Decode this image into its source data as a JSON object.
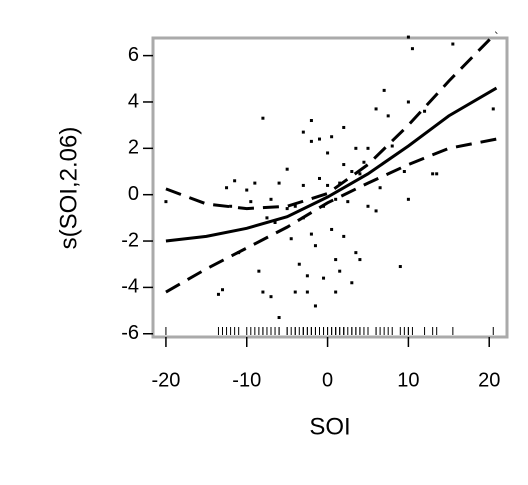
{
  "chart_data": {
    "type": "line",
    "xlabel": "SOI",
    "ylabel": "s(SOI,2.06)",
    "xlim": [
      -21.6,
      22.2
    ],
    "ylim": [
      -6.14,
      6.76
    ],
    "xticks": [
      -20,
      -10,
      0,
      10,
      20
    ],
    "yticks": [
      -6,
      -4,
      -2,
      0,
      2,
      4,
      6
    ],
    "x": [
      -20,
      -15,
      -10,
      -5,
      0,
      5,
      10,
      15,
      20.9
    ],
    "lines": [
      {
        "color": "#000000",
        "dashed": false,
        "values": [
          -2.0,
          -1.8,
          -1.45,
          -0.95,
          -0.1,
          0.9,
          2.1,
          3.4,
          4.6
        ]
      },
      {
        "color": "#000000",
        "dashed": true,
        "values": [
          0.25,
          -0.4,
          -0.6,
          -0.5,
          0.05,
          1.3,
          3.0,
          4.9,
          7.0
        ]
      },
      {
        "color": "#000000",
        "dashed": true,
        "values": [
          -4.2,
          -3.2,
          -2.3,
          -1.4,
          -0.35,
          0.5,
          1.3,
          2.0,
          2.4
        ]
      }
    ],
    "points": {
      "color": "#000000",
      "x": [
        -20,
        -13.5,
        -13,
        -12.5,
        -12,
        -11.5,
        -11,
        -10,
        -9.5,
        -9,
        -8.5,
        -8,
        -8,
        -7.5,
        -7,
        -7,
        -6.5,
        -6,
        -6,
        -5,
        -5,
        -4.5,
        -4,
        -4,
        -3.5,
        -3,
        -3,
        -3,
        -2.5,
        -2.5,
        -2,
        -2,
        -2,
        -1.5,
        -1.5,
        -1,
        -1,
        -0.5,
        -0.5,
        0,
        0,
        0.5,
        0.5,
        1,
        1,
        1,
        1.5,
        1.5,
        2,
        2,
        2,
        2.5,
        3,
        3,
        3.5,
        3.5,
        4,
        4,
        4.5,
        5,
        5,
        6,
        6,
        6.5,
        7,
        7.5,
        8,
        9,
        9.5,
        10,
        10,
        10,
        10.5,
        12,
        13,
        13.5,
        15.5,
        20.5
      ],
      "y": [
        -0.3,
        -4.3,
        -4.1,
        0.3,
        -0.5,
        0.6,
        -2.5,
        0.2,
        -0.3,
        0.5,
        -3.3,
        3.3,
        -4.2,
        -1.0,
        -4.4,
        -0.2,
        -1.2,
        -5.3,
        0.5,
        1.1,
        -0.6,
        -1.9,
        -0.5,
        -4.2,
        -3.0,
        2.7,
        0.4,
        -1.0,
        -3.5,
        -4.2,
        -1.7,
        3.2,
        2.3,
        -4.8,
        -2.2,
        2.4,
        0.7,
        -0.5,
        -3.6,
        1.8,
        0.4,
        -1.5,
        2.5,
        -0.2,
        -2.8,
        -4.2,
        0.5,
        -3.3,
        2.9,
        1.3,
        -1.8,
        -0.3,
        1.0,
        -3.8,
        2.0,
        -2.5,
        -2.8,
        0.9,
        1.4,
        -0.5,
        2.0,
        -0.7,
        3.7,
        0.3,
        4.5,
        3.4,
        2.1,
        -3.1,
        1.0,
        6.8,
        4.0,
        -0.2,
        6.3,
        3.6,
        0.9,
        0.9,
        6.5,
        3.7
      ]
    }
  }
}
